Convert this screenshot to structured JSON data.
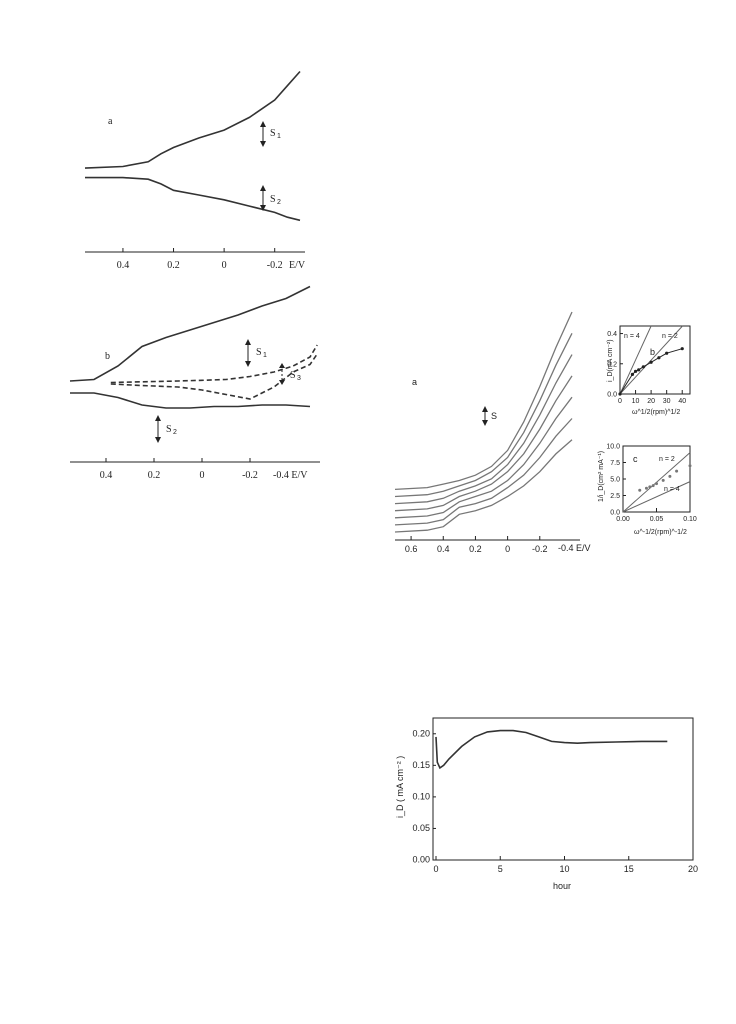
{
  "colors": {
    "ink": "#222222",
    "gray": "#777777"
  },
  "chart_data": [
    {
      "panel": "a",
      "type": "line",
      "xlabel": "E/V",
      "xticks": [
        "0.4",
        "0.2",
        "0",
        "-0.2"
      ],
      "xlim": [
        0.55,
        -0.3
      ],
      "arrows": [
        "S1",
        "S2"
      ],
      "series": [
        {
          "x": [
            0.55,
            0.4,
            0.3,
            0.25,
            0.2,
            0.1,
            0,
            -0.1,
            -0.2,
            -0.25,
            -0.3
          ],
          "y": [
            0.53,
            0.54,
            0.57,
            0.62,
            0.66,
            0.72,
            0.77,
            0.85,
            0.96,
            1.05,
            1.14
          ]
        },
        {
          "x": [
            0.55,
            0.4,
            0.3,
            0.25,
            0.2,
            0.1,
            0,
            -0.1,
            -0.2,
            -0.25,
            -0.3
          ],
          "y": [
            0.47,
            0.47,
            0.46,
            0.43,
            0.39,
            0.36,
            0.33,
            0.29,
            0.25,
            0.22,
            0.2
          ]
        }
      ]
    },
    {
      "panel": "b",
      "type": "line",
      "xlabel": "-0.4 E/V",
      "xticks": [
        "0.4",
        "0.2",
        "0",
        "-0.2"
      ],
      "xlim": [
        0.55,
        -0.5
      ],
      "arrows": [
        "S1",
        "S2",
        "S3"
      ],
      "series": [
        {
          "style": "solid",
          "x": [
            0.55,
            0.45,
            0.35,
            0.25,
            0.15,
            0.05,
            -0.05,
            -0.15,
            -0.25,
            -0.35,
            -0.45
          ],
          "y": [
            0.54,
            0.55,
            0.64,
            0.77,
            0.83,
            0.88,
            0.93,
            0.98,
            1.04,
            1.09,
            1.17
          ]
        },
        {
          "style": "solid",
          "x": [
            0.55,
            0.45,
            0.35,
            0.25,
            0.15,
            0.05,
            -0.05,
            -0.15,
            -0.25,
            -0.35,
            -0.45
          ],
          "y": [
            0.46,
            0.46,
            0.43,
            0.38,
            0.36,
            0.36,
            0.37,
            0.37,
            0.38,
            0.38,
            0.37
          ]
        },
        {
          "style": "dashed",
          "x": [
            0.38,
            0.25,
            0.1,
            0,
            -0.1,
            -0.2,
            -0.3,
            -0.38,
            -0.45,
            -0.48
          ],
          "y": [
            0.53,
            0.535,
            0.54,
            0.545,
            0.55,
            0.57,
            0.6,
            0.64,
            0.7,
            0.78
          ]
        },
        {
          "style": "dashed",
          "x": [
            0.38,
            0.25,
            0.1,
            0,
            -0.1,
            -0.2,
            -0.3,
            -0.38,
            -0.45,
            -0.48
          ],
          "y": [
            0.52,
            0.51,
            0.5,
            0.48,
            0.45,
            0.42,
            0.5,
            0.6,
            0.65,
            0.72
          ]
        }
      ]
    },
    {
      "panel": "a",
      "type": "line",
      "xlabel": "-0.4 E/V",
      "xticks": [
        "0.6",
        "0.4",
        "0.2",
        "0",
        "-0.2"
      ],
      "xlim": [
        0.7,
        -0.45
      ],
      "arrows": [
        "S"
      ],
      "series": [
        {
          "x": [
            0.7,
            0.5,
            0.4,
            0.3,
            0.2,
            0.1,
            0,
            -0.1,
            -0.2,
            -0.3,
            -0.4
          ],
          "y": [
            0.0,
            0.01,
            0.03,
            0.1,
            0.12,
            0.15,
            0.2,
            0.26,
            0.34,
            0.44,
            0.52
          ]
        },
        {
          "x": [
            0.7,
            0.5,
            0.4,
            0.3,
            0.2,
            0.1,
            0,
            -0.1,
            -0.2,
            -0.3,
            -0.4
          ],
          "y": [
            0.04,
            0.05,
            0.07,
            0.14,
            0.16,
            0.19,
            0.25,
            0.32,
            0.42,
            0.54,
            0.64
          ]
        },
        {
          "x": [
            0.7,
            0.5,
            0.4,
            0.3,
            0.2,
            0.1,
            0,
            -0.1,
            -0.2,
            -0.3,
            -0.4
          ],
          "y": [
            0.08,
            0.09,
            0.11,
            0.17,
            0.2,
            0.23,
            0.29,
            0.38,
            0.5,
            0.64,
            0.76
          ]
        },
        {
          "x": [
            0.7,
            0.5,
            0.4,
            0.3,
            0.2,
            0.1,
            0,
            -0.1,
            -0.2,
            -0.3,
            -0.4
          ],
          "y": [
            0.12,
            0.13,
            0.15,
            0.2,
            0.23,
            0.27,
            0.34,
            0.44,
            0.58,
            0.74,
            0.88
          ]
        },
        {
          "x": [
            0.7,
            0.5,
            0.4,
            0.3,
            0.2,
            0.1,
            0,
            -0.1,
            -0.2,
            -0.3,
            -0.4
          ],
          "y": [
            0.16,
            0.17,
            0.19,
            0.23,
            0.26,
            0.3,
            0.38,
            0.5,
            0.66,
            0.84,
            1.0
          ]
        },
        {
          "x": [
            0.7,
            0.5,
            0.4,
            0.3,
            0.2,
            0.1,
            0,
            -0.1,
            -0.2,
            -0.3,
            -0.4
          ],
          "y": [
            0.2,
            0.21,
            0.23,
            0.26,
            0.29,
            0.34,
            0.42,
            0.56,
            0.74,
            0.94,
            1.12
          ]
        },
        {
          "x": [
            0.7,
            0.5,
            0.4,
            0.3,
            0.2,
            0.1,
            0,
            -0.1,
            -0.2,
            -0.3,
            -0.4
          ],
          "y": [
            0.24,
            0.25,
            0.27,
            0.29,
            0.32,
            0.37,
            0.46,
            0.62,
            0.82,
            1.04,
            1.24
          ]
        }
      ]
    },
    {
      "panel": "b",
      "type": "scatter",
      "ylabel": "i_D(mA cm⁻²)",
      "xlabel": "ω^1/2(rpm)^1/2",
      "xticks": [
        "0",
        "10",
        "20",
        "30",
        "40"
      ],
      "yticks": [
        "0.0",
        "0.2",
        "0.4"
      ],
      "xlim": [
        0,
        45
      ],
      "ylim": [
        0,
        0.45
      ],
      "lines": [
        {
          "label": "n = 4",
          "slope": 0.0225
        },
        {
          "label": "n = 2",
          "slope": 0.0112
        }
      ],
      "points": {
        "x": [
          0,
          8,
          10,
          12,
          15,
          20,
          25,
          30,
          40
        ],
        "y": [
          0,
          0.13,
          0.15,
          0.16,
          0.18,
          0.21,
          0.24,
          0.27,
          0.3
        ]
      }
    },
    {
      "panel": "c",
      "type": "scatter",
      "ylabel": "1/i_D(cm² mA⁻¹)",
      "xlabel": "ω^-1/2(rpm)^-1/2",
      "xticks": [
        "0.00",
        "0.05",
        "0.10"
      ],
      "yticks": [
        "0.0",
        "2.5",
        "5.0",
        "7.5",
        "10.0"
      ],
      "xlim": [
        0,
        0.1
      ],
      "ylim": [
        0,
        10
      ],
      "lines": [
        {
          "label": "n = 2",
          "slope": 90
        },
        {
          "label": "n = 4",
          "slope": 46
        }
      ],
      "points": {
        "x": [
          0.025,
          0.035,
          0.04,
          0.045,
          0.05,
          0.06,
          0.07,
          0.08,
          0.1
        ],
        "y": [
          3.3,
          3.6,
          3.8,
          4.0,
          4.3,
          4.8,
          5.4,
          6.2,
          7.0
        ]
      }
    },
    {
      "type": "line",
      "xlabel": "hour",
      "ylabel": "i_D ( mA cm⁻² )",
      "xticks": [
        "0",
        "5",
        "10",
        "15",
        "20"
      ],
      "yticks": [
        "0.00",
        "0.05",
        "0.10",
        "0.15",
        "0.20"
      ],
      "xlim": [
        0,
        20
      ],
      "ylim": [
        0,
        0.225
      ],
      "series": [
        {
          "x": [
            0,
            0.1,
            0.3,
            0.6,
            1,
            2,
            3,
            4,
            5,
            6,
            7,
            8,
            9,
            10,
            11,
            12,
            14,
            16,
            18
          ],
          "y": [
            0.195,
            0.155,
            0.146,
            0.15,
            0.16,
            0.18,
            0.195,
            0.203,
            0.205,
            0.205,
            0.202,
            0.195,
            0.188,
            0.186,
            0.185,
            0.186,
            0.187,
            0.188,
            0.188
          ]
        }
      ]
    }
  ],
  "labels": {
    "p1": {
      "panel": "a",
      "s1": "S",
      "s1sub": "1",
      "s2": "S",
      "s2sub": "2",
      "x": "E/V"
    },
    "p2": {
      "panel": "b",
      "s1": "S",
      "s1sub": "1",
      "s2": "S",
      "s2sub": "2",
      "s3": "S",
      "s3sub": "3",
      "x": "-0.4 E/V"
    },
    "p3": {
      "panel": "a",
      "s": "S",
      "x": "-0.4 E/V"
    },
    "p4": {
      "panel": "b",
      "n4": "n = 4",
      "n2": "n = 2",
      "y": "i_D(mA cm⁻²)",
      "x": "ω^1/2(rpm)^1/2"
    },
    "p5": {
      "panel": "c",
      "n2": "n = 2",
      "n4": "n = 4",
      "y": "1/i_D(cm² mA⁻¹)",
      "x": "ω^-1/2(rpm)^-1/2"
    },
    "p6": {
      "x": "hour",
      "y": "i_D ( mA cm⁻² )"
    }
  }
}
